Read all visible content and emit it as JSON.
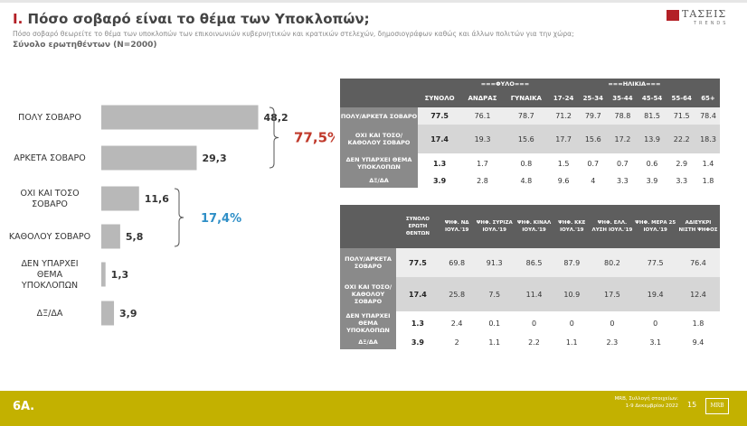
{
  "header": {
    "title_number": "Ι.",
    "title_text": "Πόσο σοβαρό είναι το θέμα των Υποκλοπών;",
    "subtitle": "Πόσο σοβαρό θεωρείτε το θέμα των υποκλοπών των επικοινωνιών κυβερνητικών και κρατικών στελεχών, δημοσιογράφων καθώς και άλλων πολιτών για την χώρα;",
    "total": "Σύνολο ερωτηθέντων (N=2000)",
    "logo_text": "ΤΑΣΕΙΣ",
    "logo_sub": "TRENDS"
  },
  "chart_data": [
    {
      "type": "bar",
      "orientation": "horizontal",
      "categories": [
        "ΠΟΛΥ ΣΟΒΑΡΟ",
        "ΑΡΚΕΤΑ ΣΟΒΑΡΟ",
        "ΟΧΙ ΚΑΙ ΤΟΣΟ ΣΟΒΑΡΟ",
        "ΚΑΘΟΛΟΥ ΣΟΒΑΡΟ",
        "ΔΕΝ ΥΠΑΡΧΕΙ ΘΕΜΑ ΥΠΟΚΛΟΠΩΝ",
        "ΔΞ/ΔΑ"
      ],
      "category_lines": [
        [
          "ΠΟΛΥ ΣΟΒΑΡΟ"
        ],
        [
          "ΑΡΚΕΤΑ ΣΟΒΑΡΟ"
        ],
        [
          "ΟΧΙ ΚΑΙ ΤΟΣΟ",
          "ΣΟΒΑΡΟ"
        ],
        [
          "ΚΑΘΟΛΟΥ ΣΟΒΑΡΟ"
        ],
        [
          "ΔΕΝ ΥΠΑΡΧΕΙ",
          "ΘΕΜΑ",
          "ΥΠΟΚΛΟΠΩΝ"
        ],
        [
          "ΔΞ/ΔΑ"
        ]
      ],
      "values": [
        48.2,
        29.3,
        11.6,
        5.8,
        1.3,
        3.9
      ],
      "value_labels": [
        "48,2",
        "29,3",
        "11,6",
        "5,8",
        "1,3",
        "3,9"
      ],
      "bar_color": "#b8b8b8",
      "groups": [
        {
          "label": "77,5%",
          "from": 0,
          "to": 1,
          "color": "#c0392b"
        },
        {
          "label": "17,4%",
          "from": 2,
          "to": 3,
          "color": "#2f8fc7"
        }
      ],
      "grid": false,
      "legend": "none"
    },
    {
      "type": "table",
      "group_headers": [
        {
          "label": "===ΦΥΛΟ===",
          "span": 2
        },
        {
          "label": "===ΗΛΙΚΙΑ===",
          "span": 6
        }
      ],
      "columns": [
        "ΣΥΝΟΛΟ",
        "ΑΝΔΡΑΣ",
        "ΓΥΝΑΙΚΑ",
        "17-24",
        "25-34",
        "35-44",
        "45-54",
        "55-64",
        "65+"
      ],
      "rows": [
        {
          "label": "ΠΟΛΥ/ΑΡΚΕΤΑ ΣΟΒΑΡΟ",
          "values": [
            "77.5",
            "76.1",
            "78.7",
            "71.2",
            "79.7",
            "78.8",
            "81.5",
            "71.5",
            "78.4"
          ]
        },
        {
          "label": "ΟΧΙ ΚΑΙ ΤΟΣΟ/ΚΑΘΟΛΟΥ ΣΟΒΑΡΟ",
          "values": [
            "17.4",
            "19.3",
            "15.6",
            "17.7",
            "15.6",
            "17.2",
            "13.9",
            "22.2",
            "18.3"
          ]
        },
        {
          "label": "ΔΕΝ ΥΠΑΡΧΕΙ ΘΕΜΑ ΥΠΟΚΛΟΠΩΝ",
          "values": [
            "1.3",
            "1.7",
            "0.8",
            "1.5",
            "0.7",
            "0.7",
            "0.6",
            "2.9",
            "1.4"
          ]
        },
        {
          "label": "ΔΞ/ΔΑ",
          "values": [
            "3.9",
            "2.8",
            "4.8",
            "9.6",
            "4",
            "3.3",
            "3.9",
            "3.3",
            "1.8"
          ]
        }
      ]
    },
    {
      "type": "table",
      "columns": [
        "ΣΥΝΟΛΟ ΕΡΩΤΗ ΘΕΝΤΩΝ",
        "ΨΗΦ. ΝΔ ΙΟΥΛ.'19",
        "ΨΗΦ. ΣΥΡΙΖΑ ΙΟΥΛ.'19",
        "ΨΗΦ. ΚΙΝΑΛ ΙΟΥΛ.'19",
        "ΨΗΦ. ΚΚΕ ΙΟΥΛ.'19",
        "ΨΗΦ. ΕΛΛ. ΛΥΣΗ ΙΟΥΛ.'19",
        "ΨΗΦ. ΜΕΡΑ 25 ΙΟΥΛ.'19",
        "ΑΔΙΕΥΚΡΙ ΝΙΣΤΗ ΨΗΦΟΣ"
      ],
      "rows": [
        {
          "label": "ΠΟΛΥ/ΑΡΚΕΤΑ ΣΟΒΑΡΟ",
          "values": [
            "77.5",
            "69.8",
            "91.3",
            "86.5",
            "87.9",
            "80.2",
            "77.5",
            "76.4"
          ]
        },
        {
          "label": "ΟΧΙ ΚΑΙ ΤΟΣΟ/ΚΑΘΟΛΟΥ ΣΟΒΑΡΟ",
          "values": [
            "17.4",
            "25.8",
            "7.5",
            "11.4",
            "10.9",
            "17.5",
            "19.4",
            "12.4"
          ]
        },
        {
          "label": "ΔΕΝ ΥΠΑΡΧΕΙ ΘΕΜΑ ΥΠΟΚΛΟΠΩΝ",
          "values": [
            "1.3",
            "2.4",
            "0.1",
            "0",
            "0",
            "0",
            "0",
            "1.8"
          ]
        },
        {
          "label": "ΔΞ/ΔΑ",
          "values": [
            "3.9",
            "2",
            "1.1",
            "2.2",
            "1.1",
            "2.3",
            "3.1",
            "9.4"
          ]
        }
      ]
    }
  ],
  "footer": {
    "code": "6Α.",
    "source_line1": "MRB, Συλλογή στοιχείων:",
    "source_line2": "1-9 Δεκεμβρίου 2022",
    "page": "15",
    "logo": "MRB"
  },
  "colors": {
    "accent": "#b32026",
    "footer": "#c3b100",
    "table_header": "#5e5e5e",
    "row_label": "#8a8a8a"
  }
}
